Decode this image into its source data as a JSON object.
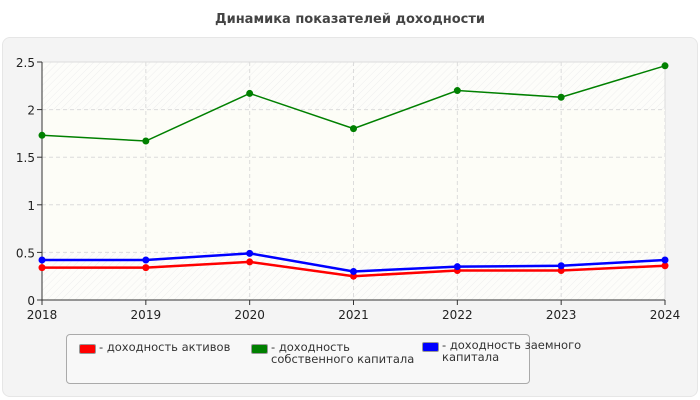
{
  "chart_data": {
    "type": "line",
    "title": "Динамика показателей доходности",
    "categories": [
      "2018",
      "2019",
      "2020",
      "2021",
      "2022",
      "2023",
      "2024"
    ],
    "ylim": [
      0,
      2.5
    ],
    "yticks": [
      "0",
      "0.5",
      "1",
      "1.5",
      "2",
      "2.5"
    ],
    "grid": true,
    "legend_position": "bottom",
    "series": [
      {
        "name": "доходность активов",
        "color": "#ff0000",
        "values": [
          0.34,
          0.34,
          0.4,
          0.25,
          0.31,
          0.31,
          0.36
        ]
      },
      {
        "name": "доходность собственного капитала",
        "color": "#008000",
        "values": [
          1.73,
          1.67,
          2.17,
          1.8,
          2.2,
          2.13,
          2.46
        ]
      },
      {
        "name": "доходность заемного капитала",
        "color": "#0000ff",
        "values": [
          0.42,
          0.42,
          0.49,
          0.3,
          0.35,
          0.36,
          0.42
        ]
      }
    ]
  }
}
